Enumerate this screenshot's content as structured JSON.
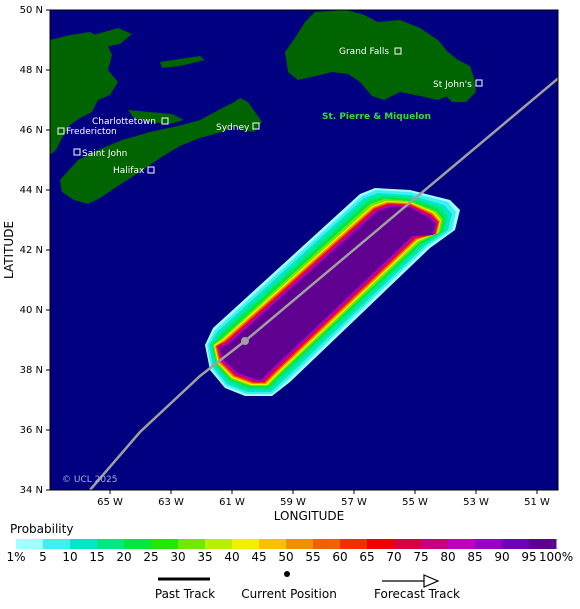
{
  "axes": {
    "x_title": "LONGITUDE",
    "y_title": "LATITUDE",
    "x_ticks": [
      "65 W",
      "63 W",
      "61 W",
      "59 W",
      "57 W",
      "55 W",
      "53 W",
      "51 W"
    ],
    "y_ticks": [
      "50 N",
      "48 N",
      "46 N",
      "44 N",
      "42 N",
      "40 N",
      "38 N",
      "36 N",
      "34 N"
    ]
  },
  "colors": {
    "ocean": "#000080",
    "land": "#006400",
    "track": "#a0a0a0",
    "grid": "#000080"
  },
  "places": {
    "grand_falls": "Grand Falls",
    "st_johns": "St John's",
    "charlottetown": "Charlottetown",
    "fredericton": "Fredericton",
    "sydney": "Sydney",
    "saint_john": "Saint John",
    "halifax": "Halifax",
    "st_pierre": "St. Pierre & Miquelon"
  },
  "copyright": "© UCL 2025",
  "legend": {
    "title": "Probability",
    "labels": [
      "1%",
      "5",
      "10",
      "15",
      "20",
      "25",
      "30",
      "35",
      "40",
      "45",
      "50",
      "55",
      "60",
      "65",
      "70",
      "75",
      "80",
      "85",
      "90",
      "95",
      "100%"
    ],
    "colors": [
      "#a0ffff",
      "#40f0f0",
      "#00e8c8",
      "#00e880",
      "#00e840",
      "#20e800",
      "#70e800",
      "#b8f000",
      "#f0f000",
      "#f8c000",
      "#f09000",
      "#f06000",
      "#f03000",
      "#f00000",
      "#d80040",
      "#c80080",
      "#c000c0",
      "#9800c8",
      "#7000b8",
      "#600090"
    ],
    "past_track": "Past Track",
    "current_position": "Current Position",
    "forecast_track": "Forecast Track"
  }
}
